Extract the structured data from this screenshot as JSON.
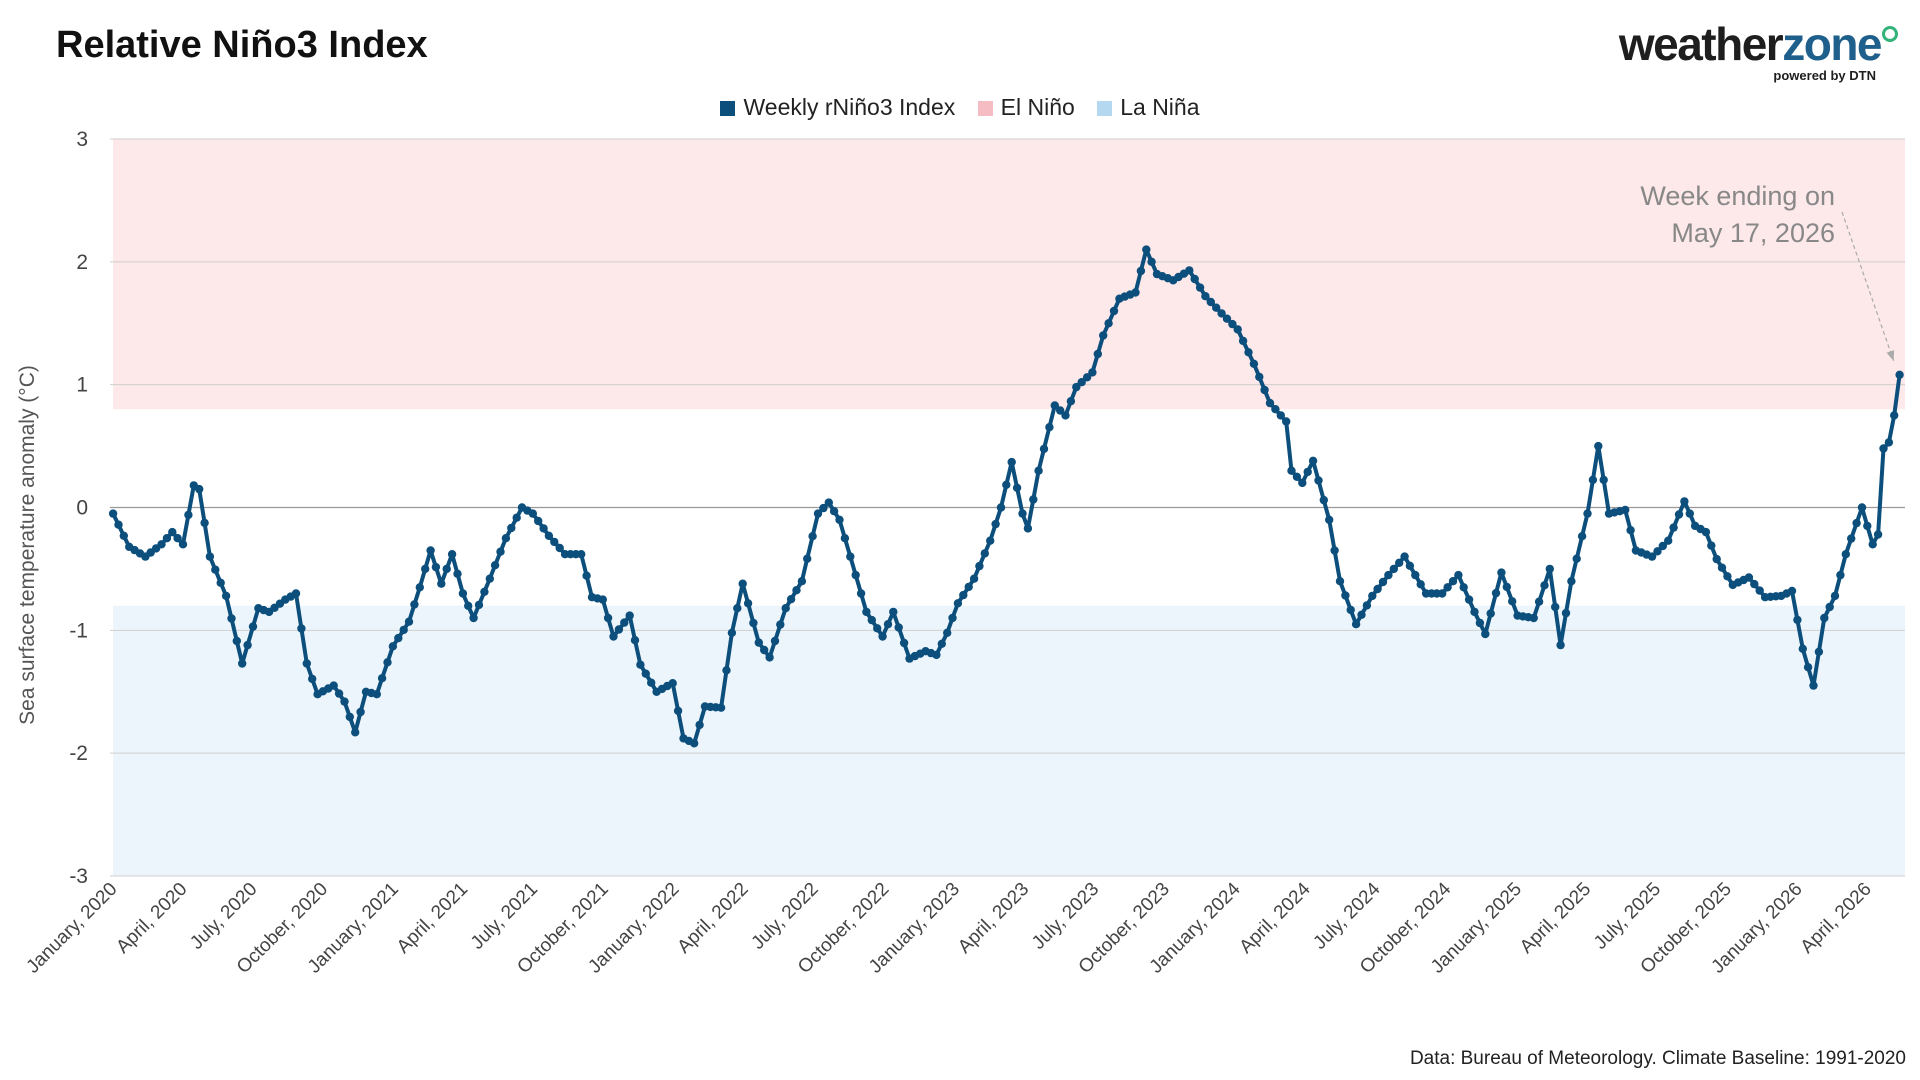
{
  "header": {
    "title": "Relative Niño3 Index",
    "logo_weather": "weather",
    "logo_zone": "zone",
    "logo_sub": "powered by DTN"
  },
  "source_note": "Data: Bureau of Meteorology. Climate Baseline: 1991-2020",
  "colors": {
    "series": "#0d4f7c",
    "el_nino_band": "#fde8ea",
    "la_nina_band": "#edf5fc",
    "el_nino_swatch": "#f6bcc3",
    "la_nina_swatch": "#b4d8ef"
  },
  "chart_data": {
    "type": "line",
    "title": "Relative Niño3 Index",
    "xlabel": "",
    "ylabel": "Sea surface temperature anomaly (°C)",
    "ylim": [
      -3,
      3
    ],
    "xlim": [
      "2020-01-01",
      "2026-05-24"
    ],
    "yticks": [
      "3",
      "2",
      "1",
      "0",
      "-1",
      "-2",
      "-3"
    ],
    "xtick_labels": [
      "January, 2020",
      "April, 2020",
      "July, 2020",
      "October, 2020",
      "January, 2021",
      "April, 2021",
      "July, 2021",
      "October, 2021",
      "January, 2022",
      "April, 2022",
      "July, 2022",
      "October, 2022",
      "January, 2023",
      "April, 2023",
      "July, 2023",
      "October, 2023",
      "January, 2024",
      "April, 2024",
      "July, 2024",
      "October, 2024",
      "January, 2025",
      "April, 2025",
      "July, 2025",
      "October, 2025",
      "January, 2026",
      "April, 2026"
    ],
    "grid": true,
    "legend_position": "top-center",
    "legend": [
      "Weekly rNiño3 Index",
      "El Niño",
      "La Niña"
    ],
    "bands": [
      {
        "name": "El Niño",
        "from": 0.8,
        "to": 3
      },
      {
        "name": "La Niña",
        "from": -3,
        "to": -0.8
      }
    ],
    "annotation": {
      "text_line1": "Week ending on",
      "text_line2": "May 17, 2026",
      "x": "2026-05-17",
      "y": 1.08
    },
    "series": [
      {
        "name": "Weekly rNiño3 Index",
        "points": [
          [
            "2020-01-05",
            -0.05
          ],
          [
            "2020-01-26",
            -0.32
          ],
          [
            "2020-02-16",
            -0.4
          ],
          [
            "2020-03-08",
            -0.3
          ],
          [
            "2020-03-22",
            -0.2
          ],
          [
            "2020-04-05",
            -0.3
          ],
          [
            "2020-04-19",
            0.18
          ],
          [
            "2020-04-26",
            0.15
          ],
          [
            "2020-05-10",
            -0.4
          ],
          [
            "2020-05-31",
            -0.72
          ],
          [
            "2020-06-21",
            -1.27
          ],
          [
            "2020-07-12",
            -0.82
          ],
          [
            "2020-07-26",
            -0.85
          ],
          [
            "2020-08-16",
            -0.75
          ],
          [
            "2020-08-30",
            -0.7
          ],
          [
            "2020-09-13",
            -1.27
          ],
          [
            "2020-09-27",
            -1.52
          ],
          [
            "2020-10-18",
            -1.45
          ],
          [
            "2020-11-01",
            -1.58
          ],
          [
            "2020-11-15",
            -1.83
          ],
          [
            "2020-11-29",
            -1.5
          ],
          [
            "2020-12-13",
            -1.52
          ],
          [
            "2021-01-03",
            -1.13
          ],
          [
            "2021-01-24",
            -0.93
          ],
          [
            "2021-02-07",
            -0.65
          ],
          [
            "2021-02-21",
            -0.35
          ],
          [
            "2021-03-07",
            -0.62
          ],
          [
            "2021-03-21",
            -0.38
          ],
          [
            "2021-04-04",
            -0.7
          ],
          [
            "2021-04-18",
            -0.9
          ],
          [
            "2021-05-09",
            -0.58
          ],
          [
            "2021-05-30",
            -0.25
          ],
          [
            "2021-06-20",
            0.0
          ],
          [
            "2021-07-04",
            -0.05
          ],
          [
            "2021-07-25",
            -0.23
          ],
          [
            "2021-08-15",
            -0.38
          ],
          [
            "2021-09-05",
            -0.38
          ],
          [
            "2021-09-19",
            -0.73
          ],
          [
            "2021-10-03",
            -0.75
          ],
          [
            "2021-10-17",
            -1.05
          ],
          [
            "2021-11-07",
            -0.88
          ],
          [
            "2021-11-21",
            -1.28
          ],
          [
            "2021-12-12",
            -1.5
          ],
          [
            "2022-01-02",
            -1.43
          ],
          [
            "2022-01-16",
            -1.88
          ],
          [
            "2022-01-30",
            -1.92
          ],
          [
            "2022-02-13",
            -1.62
          ],
          [
            "2022-03-06",
            -1.63
          ],
          [
            "2022-03-20",
            -1.02
          ],
          [
            "2022-04-03",
            -0.62
          ],
          [
            "2022-04-24",
            -1.1
          ],
          [
            "2022-05-08",
            -1.22
          ],
          [
            "2022-05-29",
            -0.82
          ],
          [
            "2022-06-19",
            -0.6
          ],
          [
            "2022-07-10",
            -0.05
          ],
          [
            "2022-07-24",
            0.04
          ],
          [
            "2022-08-07",
            -0.1
          ],
          [
            "2022-08-21",
            -0.4
          ],
          [
            "2022-09-11",
            -0.85
          ],
          [
            "2022-10-02",
            -1.05
          ],
          [
            "2022-10-16",
            -0.85
          ],
          [
            "2022-11-06",
            -1.23
          ],
          [
            "2022-11-27",
            -1.17
          ],
          [
            "2022-12-11",
            -1.2
          ],
          [
            "2022-12-25",
            -1.02
          ],
          [
            "2023-01-08",
            -0.78
          ],
          [
            "2023-01-29",
            -0.58
          ],
          [
            "2023-02-19",
            -0.27
          ],
          [
            "2023-03-05",
            0.0
          ],
          [
            "2023-03-19",
            0.37
          ],
          [
            "2023-04-02",
            -0.05
          ],
          [
            "2023-04-09",
            -0.17
          ],
          [
            "2023-04-23",
            0.3
          ],
          [
            "2023-05-14",
            0.83
          ],
          [
            "2023-05-28",
            0.75
          ],
          [
            "2023-06-11",
            0.98
          ],
          [
            "2023-07-02",
            1.1
          ],
          [
            "2023-07-16",
            1.4
          ],
          [
            "2023-08-06",
            1.7
          ],
          [
            "2023-08-27",
            1.75
          ],
          [
            "2023-09-10",
            2.1
          ],
          [
            "2023-09-24",
            1.9
          ],
          [
            "2023-10-15",
            1.85
          ],
          [
            "2023-11-05",
            1.93
          ],
          [
            "2023-11-26",
            1.72
          ],
          [
            "2023-12-17",
            1.58
          ],
          [
            "2024-01-07",
            1.45
          ],
          [
            "2024-01-28",
            1.17
          ],
          [
            "2024-02-18",
            0.85
          ],
          [
            "2024-03-10",
            0.7
          ],
          [
            "2024-03-17",
            0.3
          ],
          [
            "2024-03-31",
            0.2
          ],
          [
            "2024-04-14",
            0.38
          ],
          [
            "2024-05-05",
            -0.1
          ],
          [
            "2024-05-19",
            -0.6
          ],
          [
            "2024-06-09",
            -0.95
          ],
          [
            "2024-06-30",
            -0.72
          ],
          [
            "2024-07-21",
            -0.55
          ],
          [
            "2024-08-11",
            -0.4
          ],
          [
            "2024-08-25",
            -0.55
          ],
          [
            "2024-09-08",
            -0.7
          ],
          [
            "2024-09-29",
            -0.7
          ],
          [
            "2024-10-20",
            -0.55
          ],
          [
            "2024-11-10",
            -0.85
          ],
          [
            "2024-11-24",
            -1.03
          ],
          [
            "2024-12-15",
            -0.53
          ],
          [
            "2025-01-05",
            -0.88
          ],
          [
            "2025-01-26",
            -0.9
          ],
          [
            "2025-02-16",
            -0.5
          ],
          [
            "2025-03-02",
            -1.12
          ],
          [
            "2025-03-16",
            -0.6
          ],
          [
            "2025-04-06",
            -0.05
          ],
          [
            "2025-04-20",
            0.5
          ],
          [
            "2025-05-04",
            -0.05
          ],
          [
            "2025-05-25",
            -0.02
          ],
          [
            "2025-06-08",
            -0.35
          ],
          [
            "2025-06-29",
            -0.4
          ],
          [
            "2025-07-20",
            -0.27
          ],
          [
            "2025-08-10",
            0.05
          ],
          [
            "2025-08-24",
            -0.15
          ],
          [
            "2025-09-07",
            -0.2
          ],
          [
            "2025-09-21",
            -0.42
          ],
          [
            "2025-10-12",
            -0.63
          ],
          [
            "2025-11-02",
            -0.57
          ],
          [
            "2025-11-23",
            -0.73
          ],
          [
            "2025-12-14",
            -0.72
          ],
          [
            "2025-12-28",
            -0.68
          ],
          [
            "2026-01-11",
            -1.15
          ],
          [
            "2026-01-25",
            -1.45
          ],
          [
            "2026-02-08",
            -0.9
          ],
          [
            "2026-02-22",
            -0.72
          ],
          [
            "2026-03-08",
            -0.38
          ],
          [
            "2026-03-29",
            0.0
          ],
          [
            "2026-04-12",
            -0.3
          ],
          [
            "2026-04-19",
            -0.22
          ],
          [
            "2026-04-26",
            0.48
          ],
          [
            "2026-05-03",
            0.53
          ],
          [
            "2026-05-10",
            0.75
          ],
          [
            "2026-05-17",
            1.08
          ]
        ]
      }
    ]
  }
}
